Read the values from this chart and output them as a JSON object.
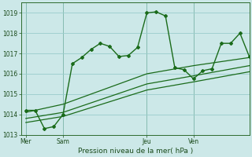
{
  "background_color": "#cce8e8",
  "grid_color": "#99cccc",
  "line_color": "#1a6b1a",
  "title": "Pression niveau de la mer( hPa )",
  "ylim": [
    1013.0,
    1019.5
  ],
  "yticks": [
    1013,
    1014,
    1015,
    1016,
    1017,
    1018,
    1019
  ],
  "day_labels": [
    "Mer",
    "Sam",
    "Jeu",
    "Ven"
  ],
  "day_positions": [
    0,
    4,
    13,
    18
  ],
  "xlim": [
    -0.5,
    24
  ],
  "series1_x": [
    0,
    1,
    2,
    3,
    4,
    5,
    6,
    7,
    8,
    9,
    10,
    11,
    12,
    13,
    14,
    15,
    16,
    17,
    18,
    19,
    20,
    21,
    22,
    23,
    24
  ],
  "series1_y": [
    1014.2,
    1014.2,
    1013.3,
    1013.4,
    1014.0,
    1016.5,
    1016.8,
    1017.2,
    1017.5,
    1017.35,
    1016.85,
    1016.9,
    1017.3,
    1019.0,
    1019.05,
    1018.85,
    1016.3,
    1016.2,
    1015.75,
    1016.15,
    1016.25,
    1017.5,
    1017.5,
    1018.0,
    1016.85
  ],
  "series2_x": [
    0,
    4,
    13,
    18,
    24
  ],
  "series2_y": [
    1014.1,
    1014.5,
    1016.0,
    1016.4,
    1016.8
  ],
  "series3_x": [
    0,
    4,
    13,
    18,
    24
  ],
  "series3_y": [
    1013.8,
    1014.1,
    1015.5,
    1015.9,
    1016.4
  ],
  "series4_x": [
    0,
    4,
    13,
    18,
    24
  ],
  "series4_y": [
    1013.6,
    1013.9,
    1015.2,
    1015.6,
    1016.1
  ]
}
